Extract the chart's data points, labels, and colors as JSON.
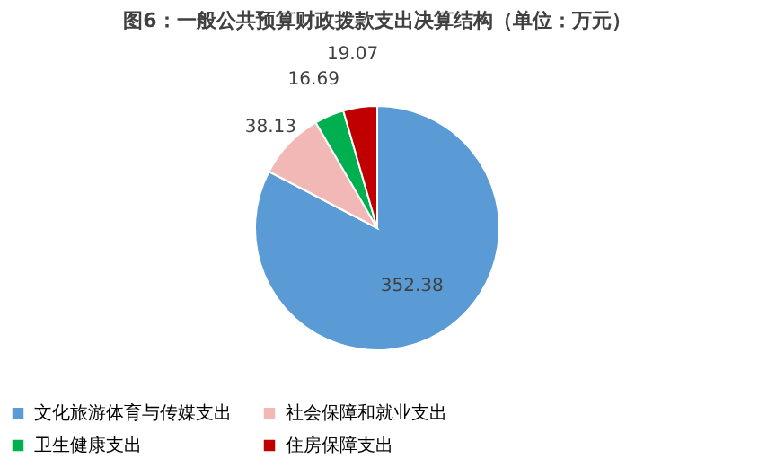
{
  "chart_data": {
    "type": "pie",
    "title": "图6：一般公共预算财政拨款支出决算结构（单位：万元）",
    "categories": [
      "文化旅游体育与传媒支出",
      "社会保障和就业支出",
      "卫生健康支出",
      "住房保障支出"
    ],
    "values": [
      352.38,
      38.13,
      16.69,
      19.07
    ],
    "colors": [
      "#5b9bd5",
      "#f2b8b5",
      "#00b050",
      "#c00000"
    ],
    "data_labels": true,
    "legend": "bottom"
  }
}
